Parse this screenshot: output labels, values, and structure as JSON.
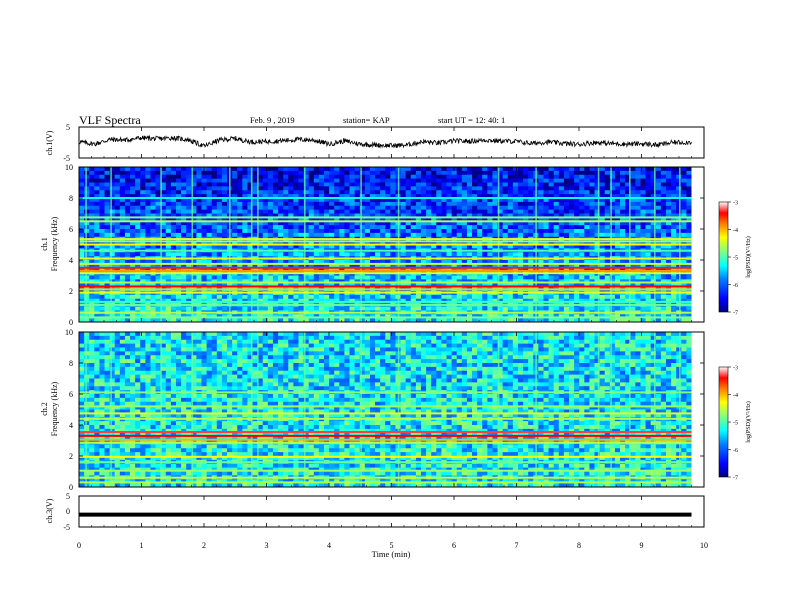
{
  "header": {
    "title": "VLF Spectra",
    "date": "Feb. 9  , 2019",
    "station": "station= KAP",
    "start_time": "start  UT  =  12: 40: 1"
  },
  "colors": {
    "colormap": [
      "#00007f",
      "#0000ff",
      "#0080ff",
      "#00ffff",
      "#80ff80",
      "#ffff00",
      "#ff8000",
      "#ff0000",
      "#ffffff"
    ],
    "trace": "#000000",
    "axes": "#000000"
  },
  "chart_data": [
    {
      "type": "line",
      "panel": "ch1-waveform",
      "ylabel": "ch.1(V)",
      "ylim": [
        -5,
        5
      ],
      "y_ticks": [
        "5",
        "-5"
      ],
      "xlim": [
        0,
        10
      ],
      "series": [
        {
          "x": [
            0,
            0.25,
            0.5,
            0.75,
            1.0,
            1.25,
            1.5,
            1.75,
            2.0,
            2.25,
            2.5,
            2.75,
            3.0,
            3.25,
            3.5,
            3.75,
            4.0,
            4.25,
            4.5,
            4.75,
            5.0,
            5.25,
            5.5,
            5.75,
            6.0,
            6.25,
            6.5,
            6.75,
            7.0,
            7.25,
            7.5,
            7.75,
            8.0,
            8.25,
            8.5,
            8.75,
            9.0,
            9.25,
            9.5,
            9.8
          ],
          "values": [
            0.2,
            -0.5,
            1.0,
            0.8,
            1.5,
            1.2,
            1.5,
            0.9,
            -1.2,
            0.8,
            1.3,
            0.2,
            0.3,
            0.6,
            1.0,
            0.8,
            -0.5,
            0.5,
            -0.5,
            -0.8,
            -1.0,
            -0.8,
            0.3,
            -0.2,
            0.5,
            0.4,
            0.8,
            0.5,
            0.3,
            -0.3,
            0.2,
            -0.3,
            -0.6,
            0.0,
            -0.3,
            -0.5,
            -0.4,
            -0.8,
            0.0,
            0.1
          ]
        }
      ]
    },
    {
      "type": "heatmap",
      "panel": "ch1-spectrogram",
      "ylabel": "ch.1",
      "ylabel2": "Frequency (kHz)",
      "ylim": [
        0,
        10
      ],
      "y_ticks": [
        "10",
        "8",
        "6",
        "4",
        "2",
        "0"
      ],
      "xlim": [
        0,
        10
      ],
      "color_scale": {
        "label": "log(PSD)(V²/Hz)",
        "min": -7,
        "max": -3,
        "ticks": [
          "-3",
          "-4",
          "-5",
          "-6",
          "-7"
        ]
      },
      "background_level_low_freq": -5.2,
      "background_level_high_freq": -6.5,
      "spectral_lines": [
        {
          "freq_khz": 0.3,
          "level": -4.8
        },
        {
          "freq_khz": 0.6,
          "level": -4.6
        },
        {
          "freq_khz": 1.1,
          "level": -4.9
        },
        {
          "freq_khz": 1.3,
          "level": -5.1
        },
        {
          "freq_khz": 1.9,
          "level": -4.4
        },
        {
          "freq_khz": 2.1,
          "level": -4.1
        },
        {
          "freq_khz": 2.3,
          "level": -3.4
        },
        {
          "freq_khz": 2.55,
          "level": -4.6
        },
        {
          "freq_khz": 3.15,
          "level": -4.3
        },
        {
          "freq_khz": 3.3,
          "level": -3.9
        },
        {
          "freq_khz": 3.5,
          "level": -3.5
        },
        {
          "freq_khz": 3.75,
          "level": -4.5
        },
        {
          "freq_khz": 4.1,
          "level": -4.4
        },
        {
          "freq_khz": 4.6,
          "level": -5.0
        },
        {
          "freq_khz": 5.0,
          "level": -4.3
        },
        {
          "freq_khz": 5.2,
          "level": -4.6
        },
        {
          "freq_khz": 5.35,
          "level": -4.4
        },
        {
          "freq_khz": 6.5,
          "level": -4.6
        },
        {
          "freq_khz": 6.75,
          "level": -4.8
        },
        {
          "freq_khz": 8.0,
          "level": -5.3
        }
      ],
      "impulsive_times_min": [
        0.1,
        0.5,
        1.3,
        1.8,
        2.4,
        2.75,
        2.85,
        3.6,
        4.5,
        5.1,
        6.7,
        7.3,
        8.3,
        8.5,
        8.8,
        9.2,
        9.6
      ]
    },
    {
      "type": "heatmap",
      "panel": "ch2-spectrogram",
      "ylabel": "ch.2",
      "ylabel2": "Frequency (kHz)",
      "ylim": [
        0,
        10
      ],
      "y_ticks": [
        "10",
        "8",
        "6",
        "4",
        "2",
        "0"
      ],
      "xlim": [
        0,
        10
      ],
      "color_scale": {
        "label": "log(PSD)(V²/Hz)",
        "min": -7,
        "max": -3,
        "ticks": [
          "-3",
          "-4",
          "-5",
          "-6",
          "-7"
        ]
      },
      "background_level_low_freq": -5.3,
      "background_level_high_freq": -5.4,
      "spectral_lines": [
        {
          "freq_khz": 0.3,
          "level": -4.6
        },
        {
          "freq_khz": 0.6,
          "level": -4.5
        },
        {
          "freq_khz": 1.05,
          "level": -4.7
        },
        {
          "freq_khz": 1.6,
          "level": -4.9
        },
        {
          "freq_khz": 1.95,
          "level": -4.3
        },
        {
          "freq_khz": 2.85,
          "level": -4.6
        },
        {
          "freq_khz": 3.05,
          "level": -4.0
        },
        {
          "freq_khz": 3.3,
          "level": -3.4
        },
        {
          "freq_khz": 3.55,
          "level": -3.3
        },
        {
          "freq_khz": 4.4,
          "level": -4.6
        },
        {
          "freq_khz": 4.75,
          "level": -4.4
        },
        {
          "freq_khz": 5.2,
          "level": -4.7
        },
        {
          "freq_khz": 6.1,
          "level": -4.8
        }
      ],
      "impulsive_times_min": [
        0.1,
        0.5,
        1.3,
        1.8,
        2.75,
        2.85,
        3.6,
        4.5,
        5.1,
        6.7,
        7.3,
        8.3,
        8.5,
        8.8,
        9.2,
        9.6
      ]
    },
    {
      "type": "line",
      "panel": "ch3-waveform",
      "ylabel": "ch.3(V)",
      "ylim": [
        -5,
        5
      ],
      "y_ticks": [
        "5",
        "0",
        "-5"
      ],
      "xlim": [
        0,
        10
      ],
      "xlabel": "Time  (min)",
      "x_ticks": [
        "0",
        "1",
        "2",
        "3",
        "4",
        "5",
        "6",
        "7",
        "8",
        "9",
        "10"
      ],
      "series": [
        {
          "x": [
            0,
            9.8
          ],
          "values": [
            -1.0,
            -1.0
          ]
        }
      ]
    }
  ]
}
